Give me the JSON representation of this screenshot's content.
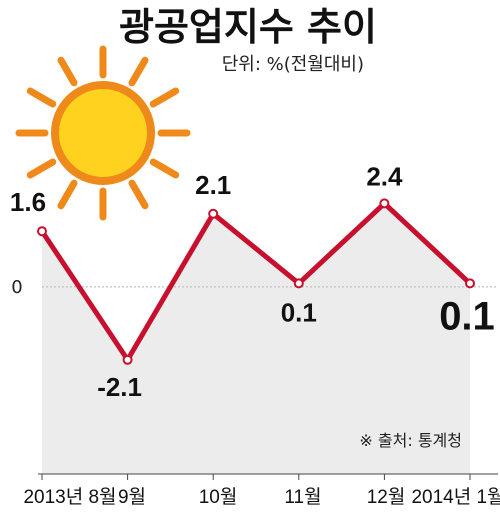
{
  "title": "광공업지수 추이",
  "unit": "단위: %(전월대비)",
  "source": "※ 출처: 통계청",
  "colors": {
    "line": "#c8102e",
    "area": "#ececec",
    "marker": "#ffffff",
    "sun_core": "#ffd21f",
    "sun_ring": "#ef8a1a"
  },
  "icons": [
    "sun-icon"
  ],
  "chart_data": {
    "type": "line",
    "title": "광공업지수 추이",
    "unit": "단위: %(전월대비)",
    "categories": [
      "2013년 8월",
      "9월",
      "10월",
      "11월",
      "12월",
      "2014년 1월"
    ],
    "series": [
      {
        "values": [
          1.6,
          -2.1,
          2.1,
          0.1,
          2.4,
          0.1
        ]
      }
    ],
    "data_labels": [
      "1.6",
      "-2.1",
      "2.1",
      "0.1",
      "2.4",
      "0.1"
    ],
    "yticks": [
      {
        "value": 0,
        "label": "0"
      }
    ],
    "ylim": [
      -5.5,
      4.8
    ],
    "grid": false,
    "legend": "none"
  }
}
